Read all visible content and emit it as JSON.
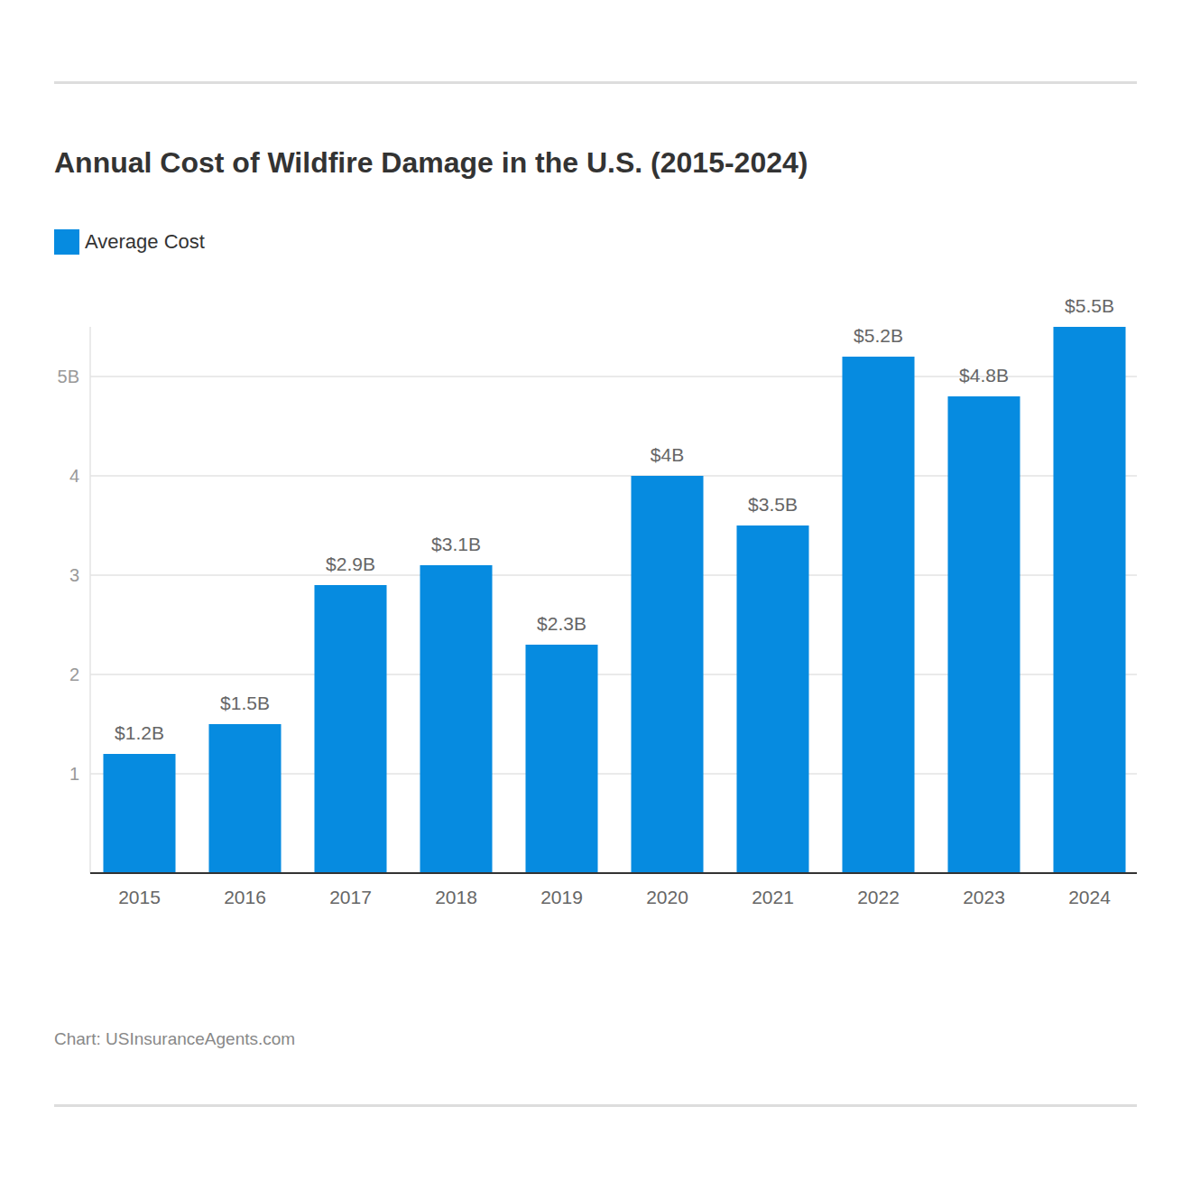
{
  "chart_data": {
    "type": "bar",
    "title": "Annual Cost of Wildfire Damage in the U.S. (2015-2024)",
    "series": [
      {
        "name": "Average Cost",
        "color": "#068be0",
        "values": [
          1.2,
          1.5,
          2.9,
          3.1,
          2.3,
          4,
          3.5,
          5.2,
          4.8,
          5.5
        ],
        "value_labels": [
          "$1.2B",
          "$1.5B",
          "$2.9B",
          "$3.1B",
          "$2.3B",
          "$4B",
          "$3.5B",
          "$5.2B",
          "$4.8B",
          "$5.5B"
        ]
      }
    ],
    "categories": [
      "2015",
      "2016",
      "2017",
      "2018",
      "2019",
      "2020",
      "2021",
      "2022",
      "2023",
      "2024"
    ],
    "ylim": [
      0,
      5.5
    ],
    "yticks": [
      1,
      2,
      3,
      4,
      {
        "value": 5,
        "label": "5B"
      }
    ],
    "grid": true,
    "data_labels": true,
    "legend": "top-left",
    "source": "Chart: USInsuranceAgents.com"
  }
}
